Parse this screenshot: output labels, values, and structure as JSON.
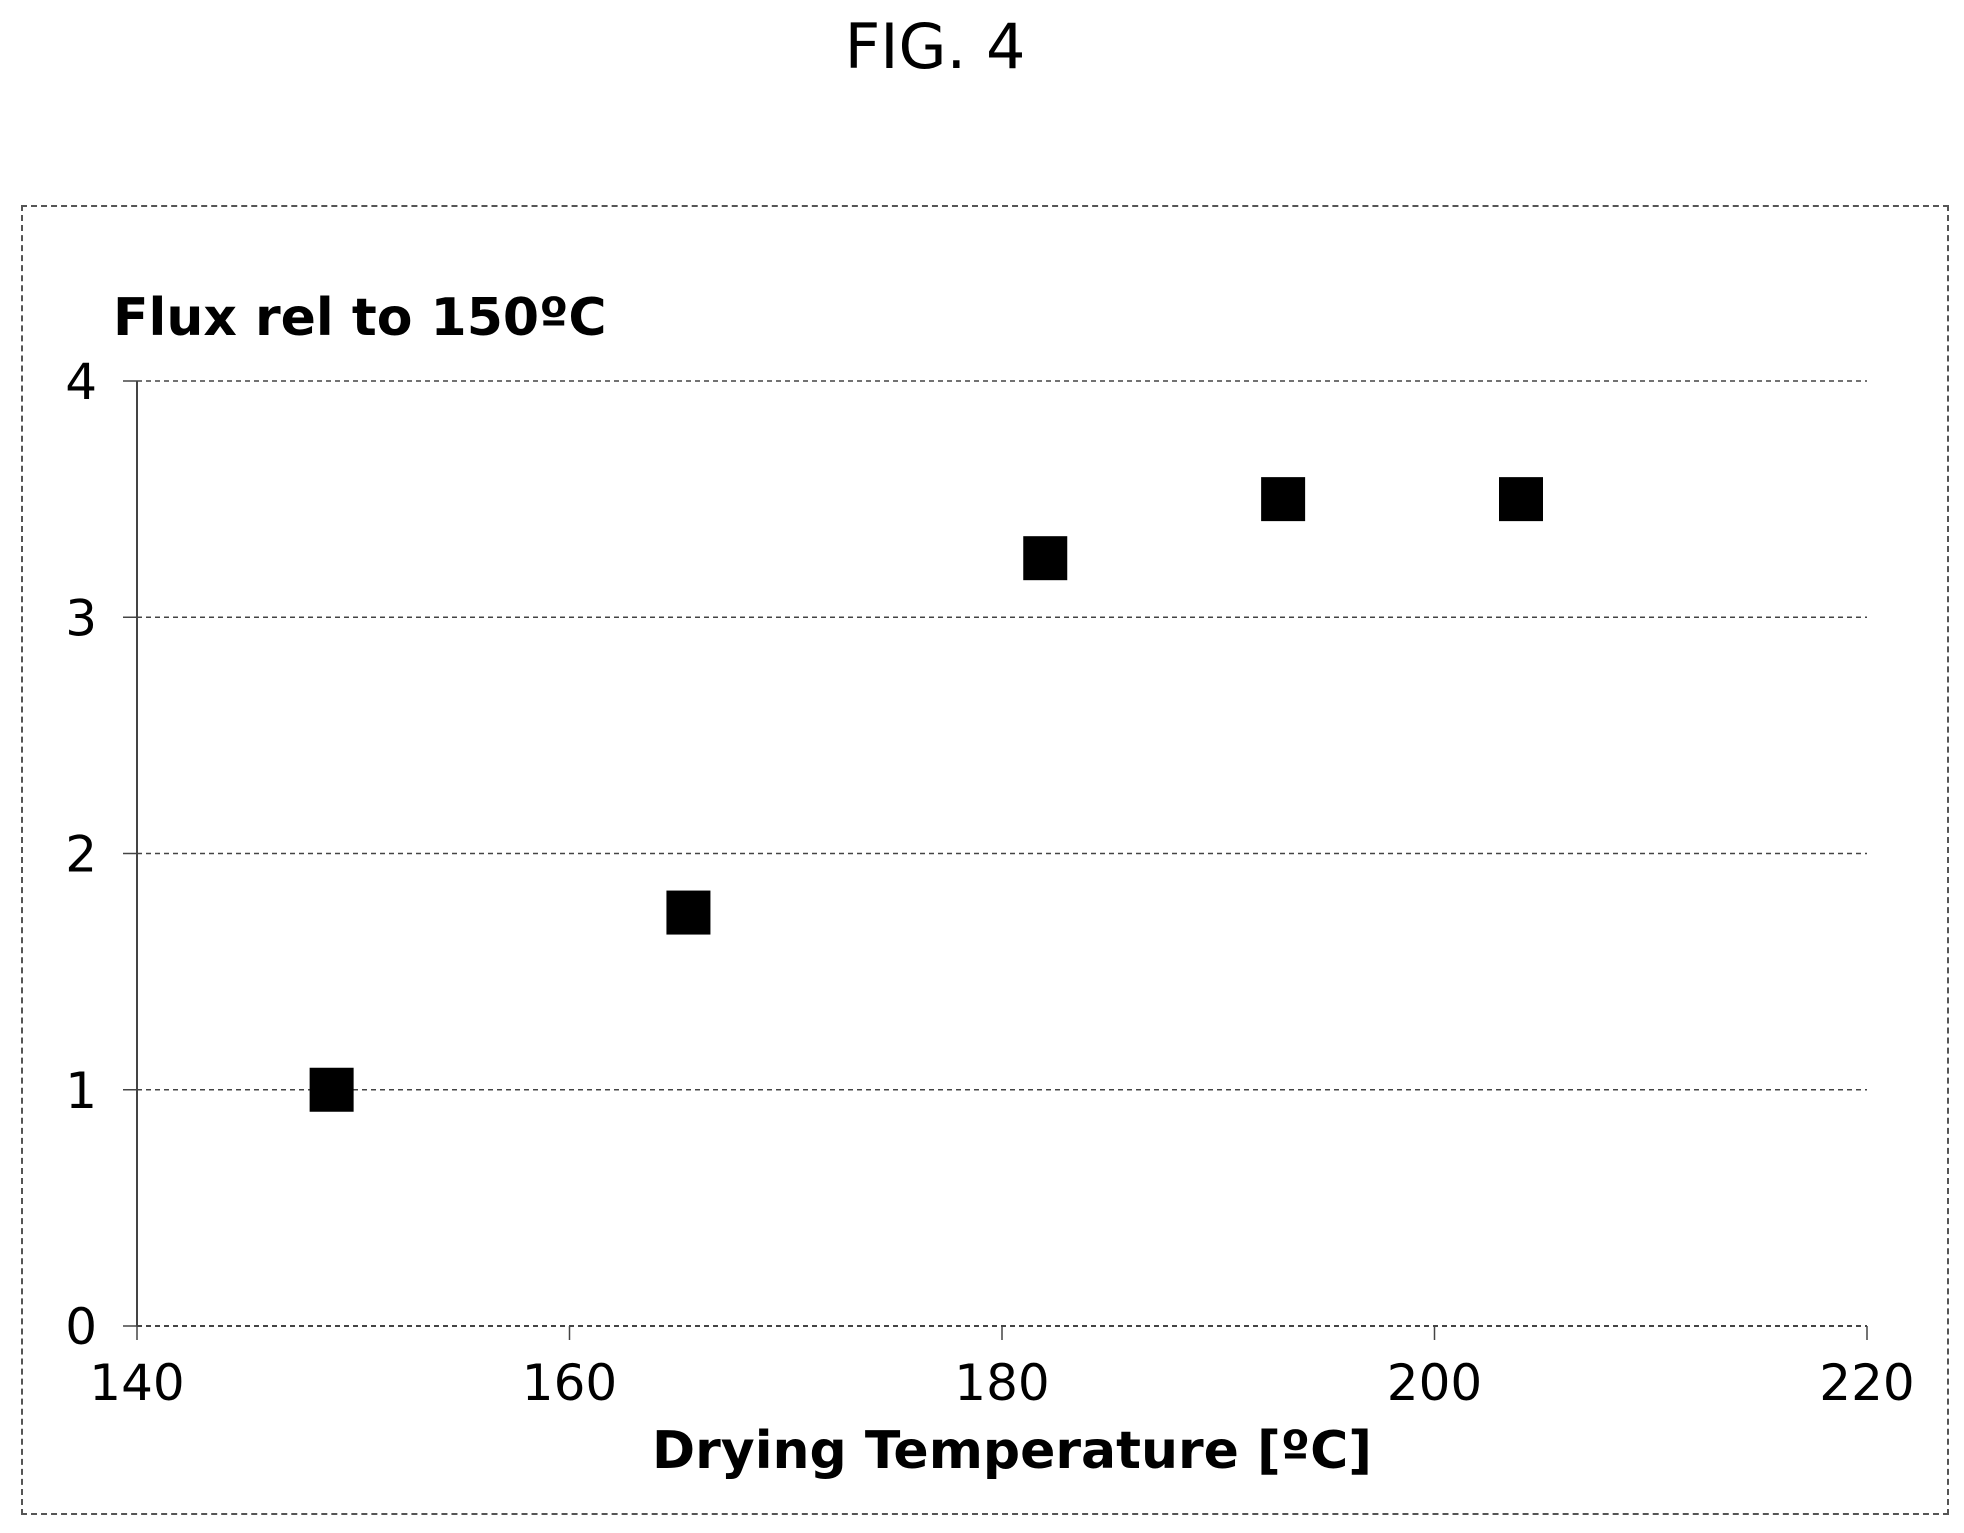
{
  "figure_label": "FIG. 4",
  "chart_data": {
    "type": "scatter",
    "ylabel": "Flux rel to 150ºC",
    "xlabel": "Drying Temperature [ºC]",
    "xlim": [
      140,
      220
    ],
    "ylim": [
      0,
      4
    ],
    "x_ticks": [
      "140",
      "160",
      "180",
      "200",
      "220"
    ],
    "y_ticks": [
      "0",
      "1",
      "2",
      "3",
      "4"
    ],
    "grid": "horizontal dashed",
    "legend": "none",
    "marker": "filled-square",
    "marker_color": "#000000",
    "points": [
      {
        "x": 149,
        "y": 1.0
      },
      {
        "x": 165.5,
        "y": 1.75
      },
      {
        "x": 182,
        "y": 3.25
      },
      {
        "x": 193,
        "y": 3.5
      },
      {
        "x": 204,
        "y": 3.5
      }
    ]
  }
}
